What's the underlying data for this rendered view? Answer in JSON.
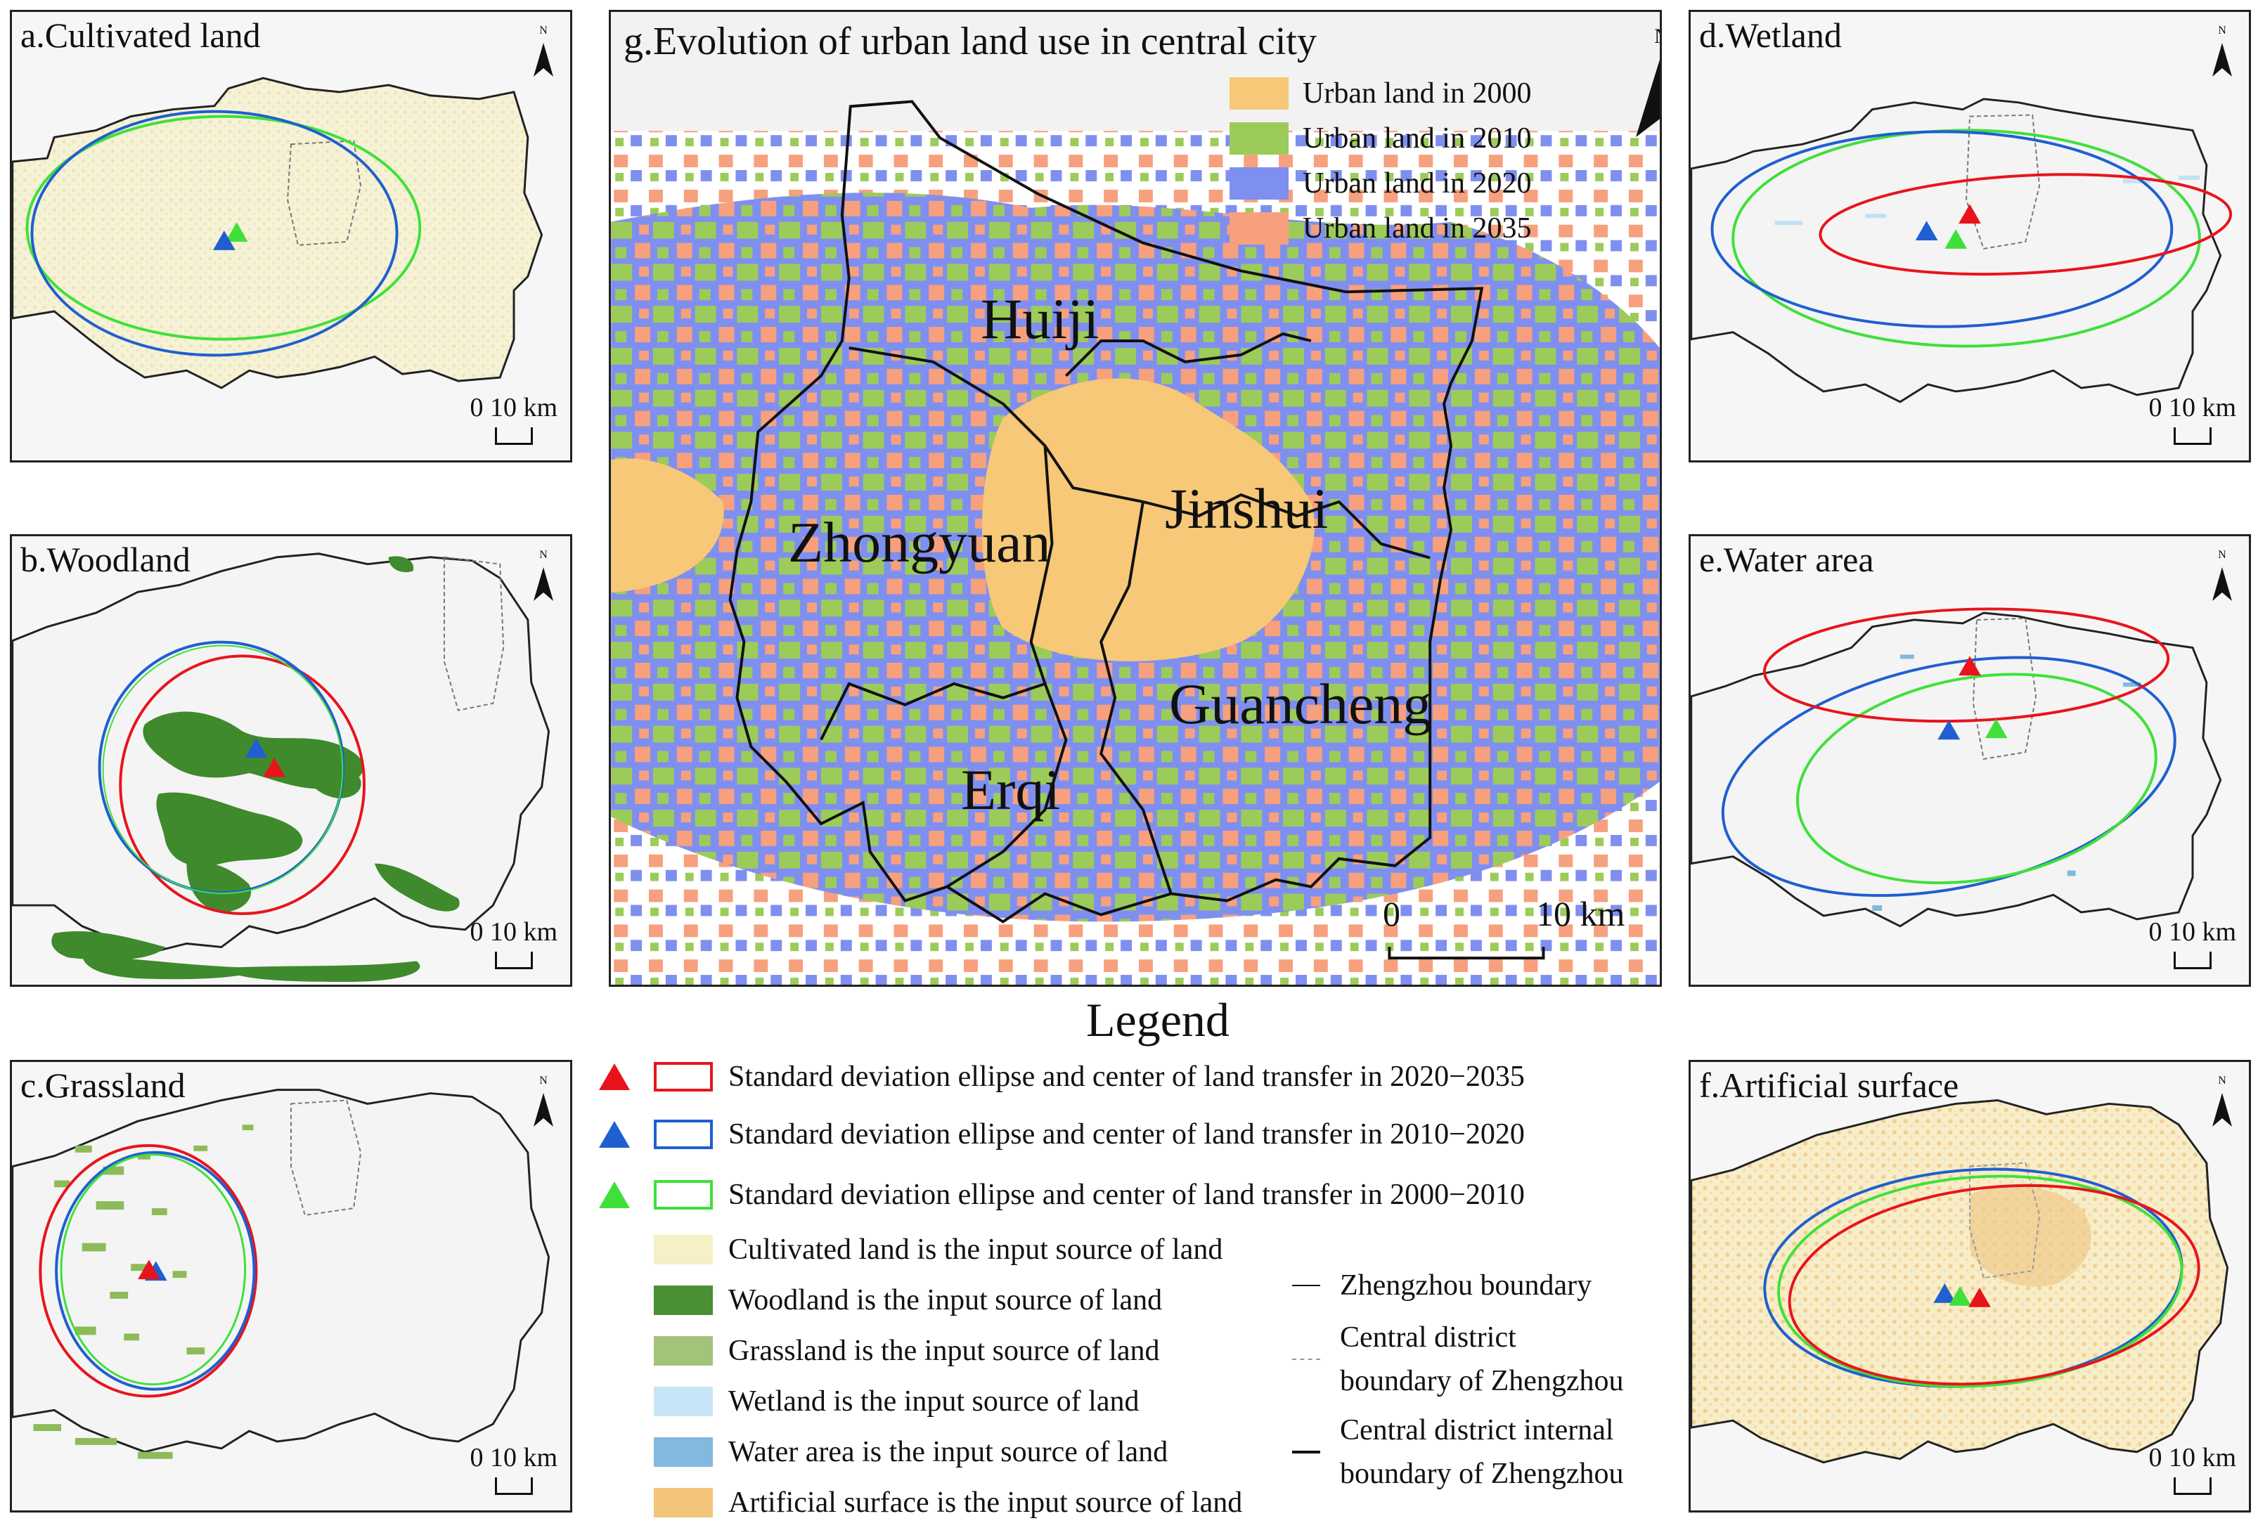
{
  "panels": {
    "a": {
      "title": "a.Cultivated land",
      "scale": "0 10 km",
      "north": "N"
    },
    "b": {
      "title": "b.Woodland",
      "scale": "0 10 km",
      "north": "N"
    },
    "c": {
      "title": "c.Grassland",
      "scale": "0 10 km",
      "north": "N"
    },
    "d": {
      "title": "d.Wetland",
      "scale": "0 10 km",
      "north": "N"
    },
    "e": {
      "title": "e.Water area",
      "scale": "0 10 km",
      "north": "N"
    },
    "f": {
      "title": "f.Artificial surface",
      "scale": "0 10 km",
      "north": "N"
    }
  },
  "central": {
    "title": "g.Evolution of urban land use in central city",
    "north": "N",
    "scale_zero": "0",
    "scale_ten": "10 km",
    "districts": [
      "Huiji",
      "Jinshui",
      "Zhongyuan",
      "Guancheng",
      "Erqi"
    ],
    "urban_legend": [
      {
        "label": "Urban land in 2000",
        "color": "#f6c878"
      },
      {
        "label": "Urban land in 2010",
        "color": "#9ccb5a"
      },
      {
        "label": "Urban land in 2020",
        "color": "#7f8ff0"
      },
      {
        "label": "Urban land in 2035",
        "color": "#f7a07e"
      }
    ]
  },
  "legend": {
    "title": "Legend",
    "ellipse_entries": [
      {
        "label": "Standard deviation ellipse and center of land transfer in 2020−2035",
        "color": "#e8141c"
      },
      {
        "label": "Standard deviation ellipse and center of land transfer in 2010−2020",
        "color": "#1f5fd0"
      },
      {
        "label": "Standard deviation ellipse and center of land transfer in 2000−2010",
        "color": "#3fe03a"
      }
    ],
    "source_entries": [
      {
        "label": "Cultivated land is the input source of land",
        "color": "#f6f0c6"
      },
      {
        "label": "Woodland is the input source of land",
        "color": "#4a8f34"
      },
      {
        "label": "Grassland is the input source of land",
        "color": "#a3c37a"
      },
      {
        "label": "Wetland is the input source of land",
        "color": "#c6e6f8"
      },
      {
        "label": "Water area is the input source of land",
        "color": "#83b9dc"
      },
      {
        "label": "Artificial surface is the input source of land",
        "color": "#f2c57a"
      }
    ],
    "line_entries": {
      "boundary": "Zhengzhou boundary",
      "district_line1": "Central district",
      "district_line2": "boundary of Zhengzhou",
      "internal_line1": "Central district internal",
      "internal_line2": "boundary of Zhengzhou"
    }
  }
}
